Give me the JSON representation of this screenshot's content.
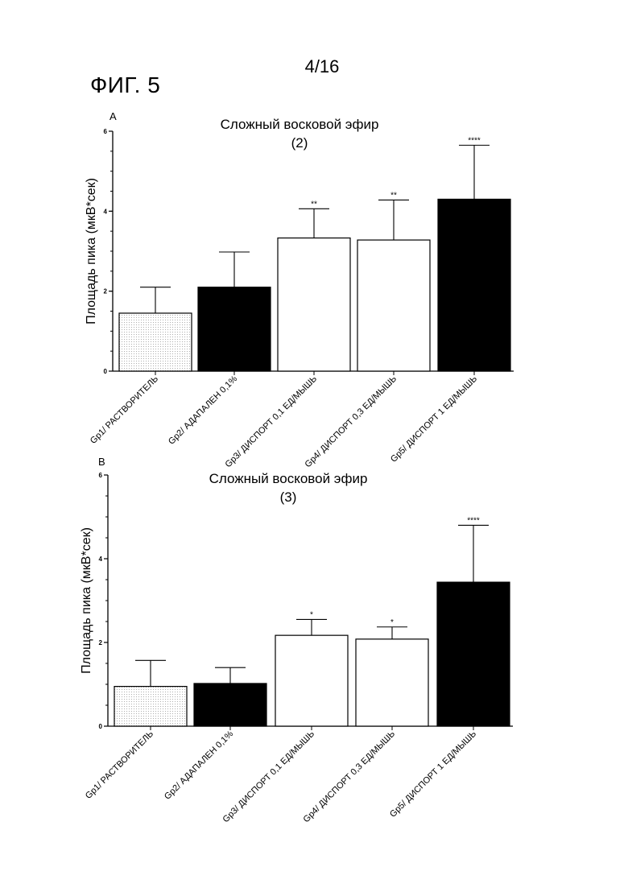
{
  "page_number": "4/16",
  "figure_label": "ФИГ. 5",
  "chart_data": [
    {
      "type": "bar",
      "panel_label": "A",
      "title": "Сложный восковой эфир",
      "subtitle": "(2)",
      "ylabel": "Площадь пика (мкВ*сек)",
      "xlabel": "",
      "ylim": [
        0,
        6
      ],
      "yticks": [
        "0",
        "2",
        "4",
        "6"
      ],
      "categories": [
        "Gp1/ РАСТВОРИТЕЛЬ",
        "Gp2/ АДАПАЛЕН 0,1%",
        "Gp3/ ДИСПОРТ 0,1 ЕД/МЫШЬ",
        "Gp4/ ДИСПОРТ 0,3 ЕД/МЫШЬ",
        "Gp5/ ДИСПОРТ 1 ЕД/МЫШЬ"
      ],
      "values": [
        1.45,
        2.1,
        3.33,
        3.28,
        4.3
      ],
      "errors": [
        0.65,
        0.88,
        0.73,
        1.0,
        1.35
      ],
      "significance": [
        "",
        "",
        "**",
        "**",
        "****"
      ],
      "fills": [
        "dotted",
        "#000000",
        "#ffffff",
        "#ffffff",
        "#000000"
      ],
      "grid": false,
      "legend": "none"
    },
    {
      "type": "bar",
      "panel_label": "B",
      "title": "Сложный восковой эфир",
      "subtitle": "(3)",
      "ylabel": "Площадь пика (мкВ*сек)",
      "xlabel": "",
      "ylim": [
        0,
        6
      ],
      "yticks": [
        "0",
        "2",
        "4",
        "6"
      ],
      "categories": [
        "Gp1/ РАСТВОРИТЕЛЬ",
        "Gp2/ АДАПАЛЕН 0,1%",
        "Gp3/ ДИСПОРТ 0,1 ЕД/МЫШЬ",
        "Gp4/ ДИСПОРТ 0,3 ЕД/МЫШЬ",
        "Gp5/ ДИСПОРТ 1 ЕД/МЫШЬ"
      ],
      "values": [
        0.95,
        1.02,
        2.17,
        2.08,
        3.44
      ],
      "errors": [
        0.62,
        0.38,
        0.38,
        0.29,
        1.36
      ],
      "significance": [
        "",
        "",
        "*",
        "*",
        "****"
      ],
      "fills": [
        "dotted",
        "#000000",
        "#ffffff",
        "#ffffff",
        "#000000"
      ],
      "grid": false,
      "legend": "none"
    }
  ]
}
